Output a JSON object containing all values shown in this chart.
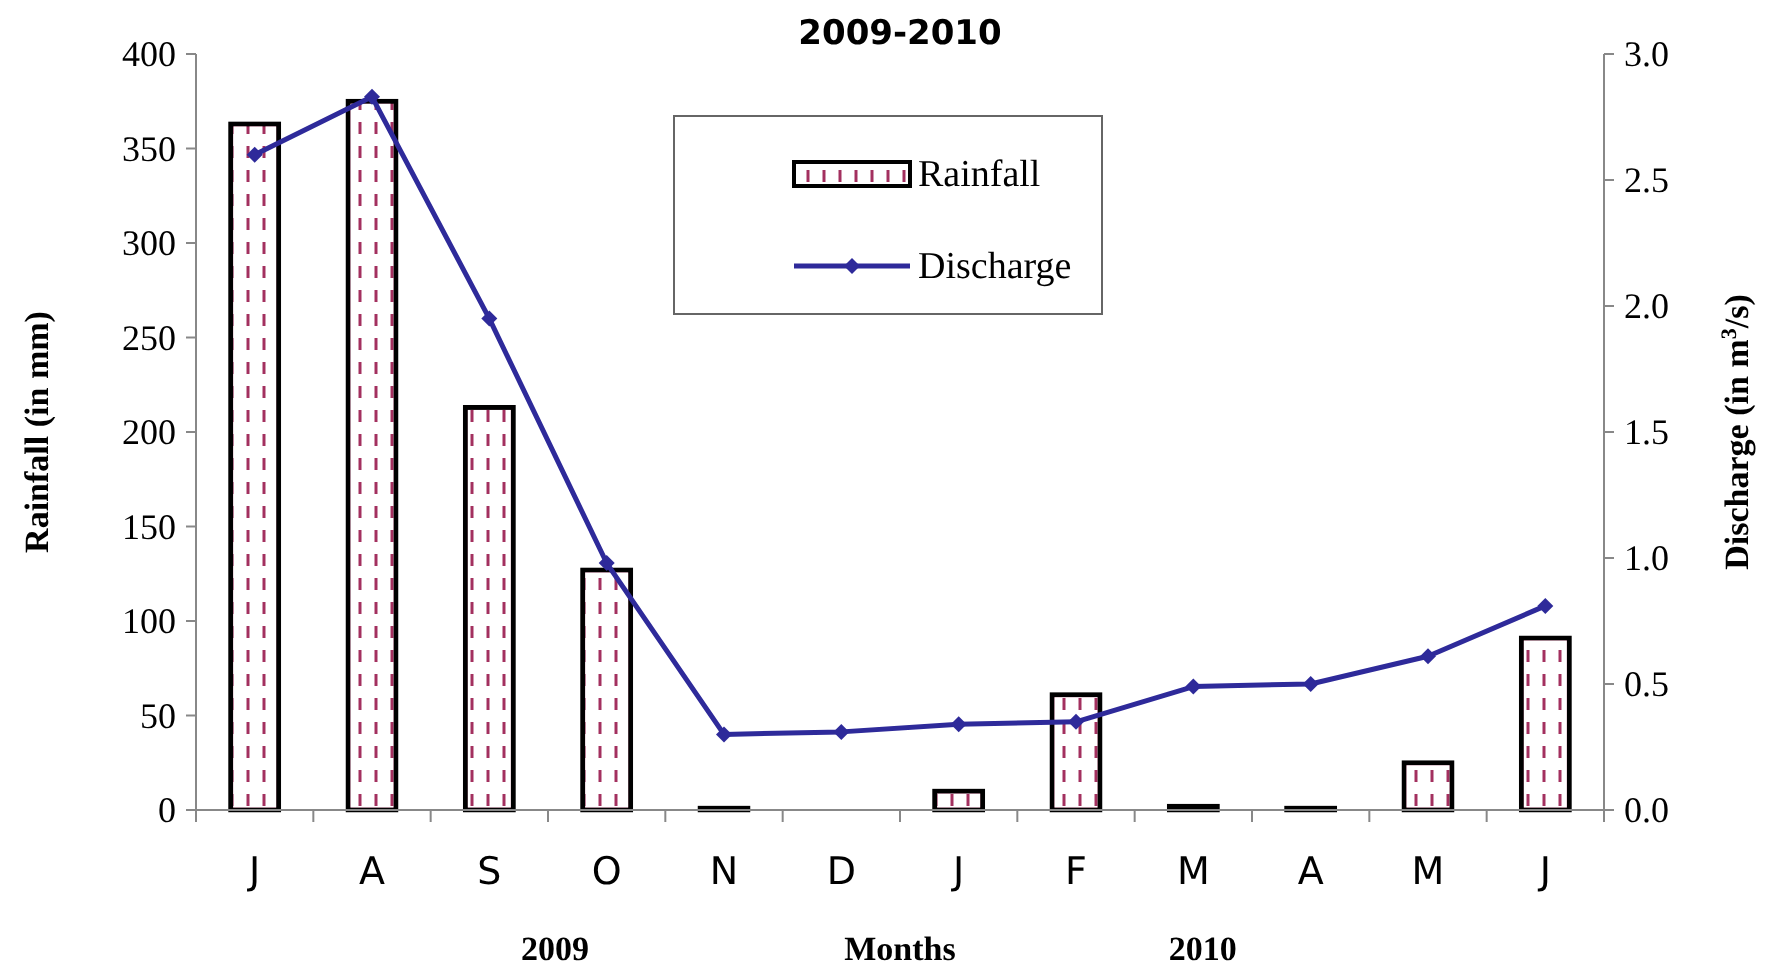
{
  "chart_data": {
    "type": "bar",
    "title": "2009-2010",
    "xlabel": "Months",
    "ylabel": "Rainfall (in mm)",
    "y2label": "Discharge (in m$^{3}$/s)",
    "categories": [
      "J",
      "A",
      "S",
      "O",
      "N",
      "D",
      "J",
      "F",
      "M",
      "A",
      "M",
      "J"
    ],
    "series": [
      {
        "name": "Rainfall",
        "color": "#a3305f",
        "values": [
          363,
          375,
          213,
          127,
          1,
          0,
          10,
          61,
          2,
          1,
          25,
          91
        ]
      },
      {
        "name": "Discharge",
        "type": "line",
        "axis": "y2",
        "color": "#2e2a9a",
        "marker": "diamond",
        "values": [
          2.6,
          2.83,
          1.95,
          0.98,
          0.3,
          0.31,
          0.34,
          0.35,
          0.49,
          0.5,
          0.61,
          0.81
        ]
      }
    ],
    "ylim": [
      0,
      400
    ],
    "yticks": [
      0,
      50,
      100,
      150,
      200,
      250,
      300,
      350,
      400
    ],
    "y2lim": [
      0,
      3
    ],
    "y2ticks": [
      {
        "value": 0,
        "label": "0.0"
      },
      {
        "value": 0.5,
        "label": "0.5"
      },
      {
        "value": 1,
        "label": "1.0"
      },
      {
        "value": 1.5,
        "label": "1.5"
      },
      {
        "value": 2,
        "label": "2.0"
      },
      {
        "value": 2.5,
        "label": "2.5"
      },
      {
        "value": 3,
        "label": "3.0"
      }
    ],
    "legend": "top",
    "grid": false,
    "annotations": [
      "2009",
      "2010"
    ]
  }
}
